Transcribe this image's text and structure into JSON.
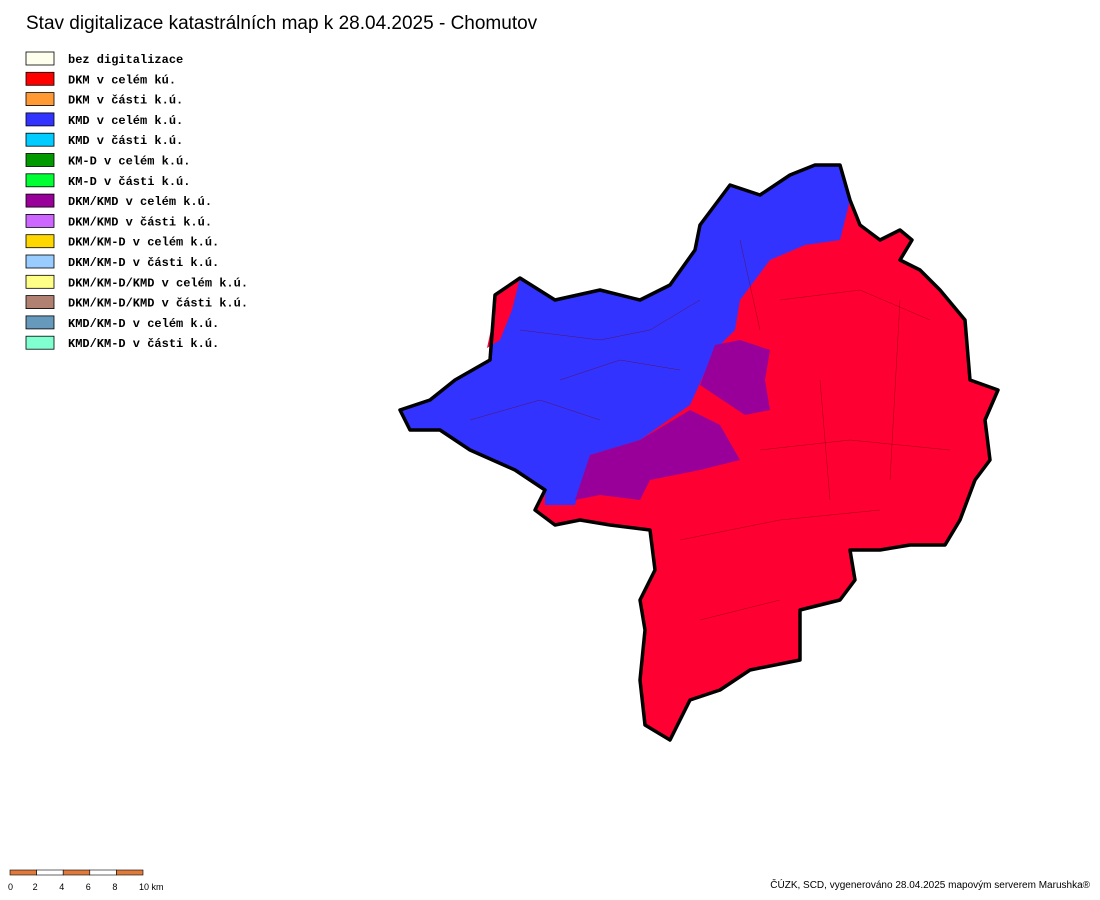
{
  "title": "Stav digitalizace katastrálních map k 28.04.2025 - Chomutov",
  "legend": [
    {
      "label": "bez digitalizace",
      "color": "#ffffee"
    },
    {
      "label": "DKM v celém kú.",
      "color": "#ff0000"
    },
    {
      "label": "DKM v části k.ú.",
      "color": "#ff9933"
    },
    {
      "label": "KMD v celém k.ú.",
      "color": "#3333ff"
    },
    {
      "label": "KMD v části k.ú.",
      "color": "#00ccff"
    },
    {
      "label": "KM-D v celém k.ú.",
      "color": "#009900"
    },
    {
      "label": "KM-D v části k.ú.",
      "color": "#00ff33"
    },
    {
      "label": "DKM/KMD v celém k.ú.",
      "color": "#990099"
    },
    {
      "label": "DKM/KMD v části k.ú.",
      "color": "#cc66ff"
    },
    {
      "label": "DKM/KM-D v celém k.ú.",
      "color": "#ffd700"
    },
    {
      "label": "DKM/KM-D v části k.ú.",
      "color": "#99ccff"
    },
    {
      "label": "DKM/KM-D/KMD v celém k.ú.",
      "color": "#ffff88"
    },
    {
      "label": "DKM/KM-D/KMD v části k.ú.",
      "color": "#b08070"
    },
    {
      "label": "KMD/KM-D v celém k.ú.",
      "color": "#6699bb"
    },
    {
      "label": "KMD/KM-D v části k.ú.",
      "color": "#80ffd0"
    }
  ],
  "scale": [
    "0",
    "2",
    "4",
    "6",
    "8",
    "10 km"
  ],
  "credit": "ČÚZK, SCD, vygenerováno 28.04.2025 mapovým serverem Marushka®"
}
